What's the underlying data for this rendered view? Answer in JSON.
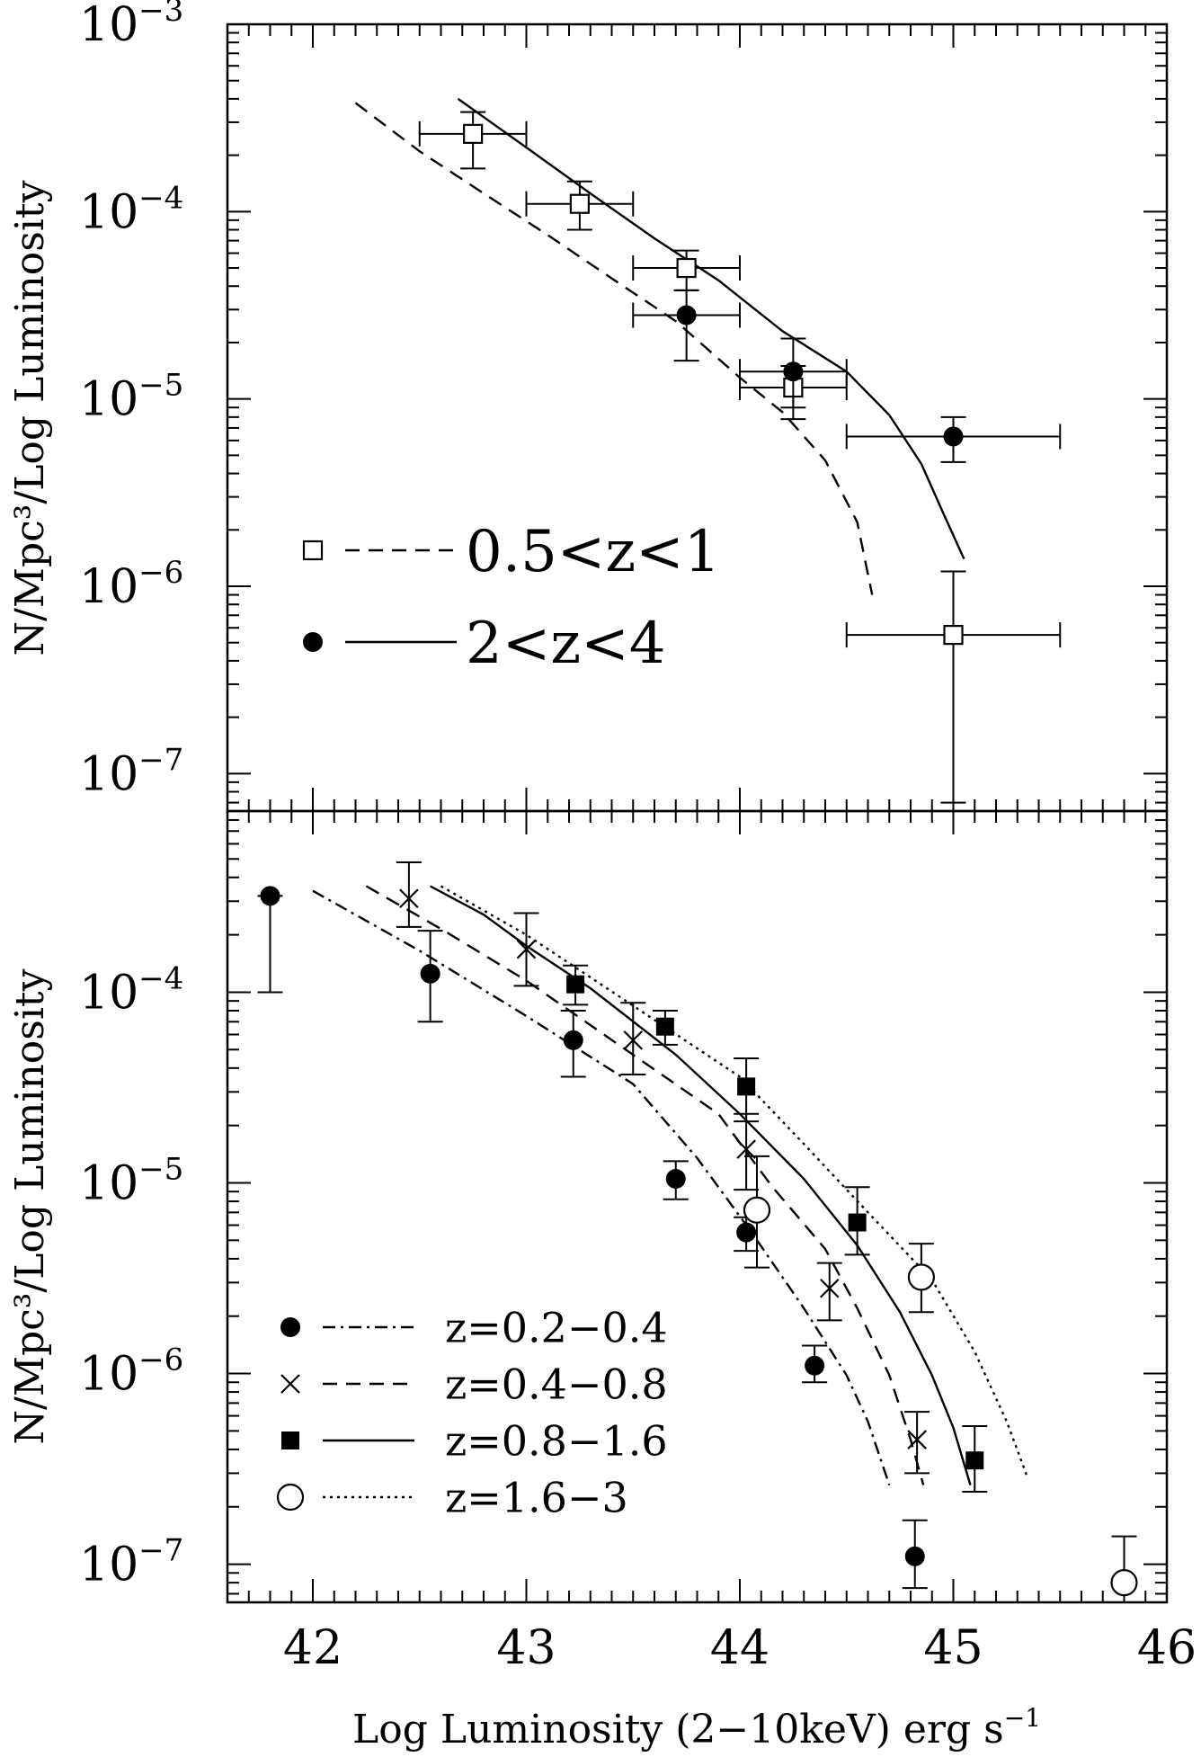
{
  "chart_data": [
    {
      "panel": "top",
      "type": "scatter",
      "ylabel": "N/Mpc³/Log Luminosity",
      "xlim": [
        41.6,
        46.0
      ],
      "ylim": [
        -7.2,
        -3.0
      ],
      "y_scale": "log",
      "y_ticks": [
        {
          "base": "10",
          "exp": "−3",
          "v": -3
        },
        {
          "base": "10",
          "exp": "−4",
          "v": -4
        },
        {
          "base": "10",
          "exp": "−5",
          "v": -5
        },
        {
          "base": "10",
          "exp": "−6",
          "v": -6
        },
        {
          "base": "10",
          "exp": "−7",
          "v": -7
        }
      ],
      "series": [
        {
          "name": "0.5<z<1",
          "marker": "open-square",
          "line": "dashed",
          "points": [
            {
              "x": 42.75,
              "y": 0.00026,
              "xerr": 0.25,
              "yerr": [
                0.00017,
                0.00034
              ]
            },
            {
              "x": 43.25,
              "y": 0.00011,
              "xerr": 0.25,
              "yerr": [
                8e-05,
                0.000145
              ]
            },
            {
              "x": 43.75,
              "y": 5e-05,
              "xerr": 0.25,
              "yerr": [
                3.8e-05,
                6.2e-05
              ]
            },
            {
              "x": 44.25,
              "y": 1.15e-05,
              "xerr": 0.25,
              "yerr": [
                7.8e-06,
                1.5e-05
              ]
            },
            {
              "x": 45.0,
              "y": 5.5e-07,
              "xerr": 0.5,
              "yerr": [
                7e-08,
                1.2e-06
              ]
            }
          ],
          "model": [
            [
              42.2,
              0.00038
            ],
            [
              42.5,
              0.00021
            ],
            [
              42.8,
              0.000125
            ],
            [
              43.1,
              7.5e-05
            ],
            [
              43.4,
              4.4e-05
            ],
            [
              43.7,
              2.6e-05
            ],
            [
              44.0,
              1.3e-05
            ],
            [
              44.2,
              8.5e-06
            ],
            [
              44.4,
              4.7e-06
            ],
            [
              44.55,
              2.2e-06
            ],
            [
              44.62,
              9e-07
            ]
          ]
        },
        {
          "name": "2<z<4",
          "marker": "filled-circle",
          "line": "solid",
          "points": [
            {
              "x": 43.75,
              "y": 2.8e-05,
              "xerr": 0.25,
              "yerr": [
                1.6e-05,
                3.8e-05
              ]
            },
            {
              "x": 44.25,
              "y": 1.4e-05,
              "xerr": 0.25,
              "yerr": [
                9e-06,
                2.1e-05
              ]
            },
            {
              "x": 45.0,
              "y": 6.3e-06,
              "xerr": 0.5,
              "yerr": [
                4.6e-06,
                8e-06
              ]
            }
          ],
          "model": [
            [
              42.68,
              0.0004
            ],
            [
              43.0,
              0.00022
            ],
            [
              43.3,
              0.000125
            ],
            [
              43.6,
              7.2e-05
            ],
            [
              43.9,
              4.3e-05
            ],
            [
              44.2,
              2.3e-05
            ],
            [
              44.5,
              1.4e-05
            ],
            [
              44.7,
              8.2e-06
            ],
            [
              44.85,
              4.5e-06
            ],
            [
              44.95,
              2.5e-06
            ],
            [
              45.05,
              1.4e-06
            ]
          ]
        }
      ],
      "legend": [
        {
          "marker": "open-square",
          "line": "dashed",
          "label": "0.5<z<1"
        },
        {
          "marker": "filled-circle",
          "line": "solid",
          "label": "2<z<4"
        }
      ]
    },
    {
      "panel": "bottom",
      "type": "scatter",
      "xlabel": "Log Luminosity (2−10keV) erg s",
      "xlabel_sup": "−1",
      "ylabel": "N/Mpc³/Log Luminosity",
      "xlim": [
        41.6,
        46.0
      ],
      "ylim": [
        -7.2,
        -3.05
      ],
      "y_scale": "log",
      "x_ticks": [
        "42",
        "43",
        "44",
        "45",
        "46"
      ],
      "y_ticks": [
        {
          "base": "10",
          "exp": "−4",
          "v": -4
        },
        {
          "base": "10",
          "exp": "−5",
          "v": -5
        },
        {
          "base": "10",
          "exp": "−6",
          "v": -6
        },
        {
          "base": "10",
          "exp": "−7",
          "v": -7
        }
      ],
      "series": [
        {
          "name": "z=0.2−0.4",
          "marker": "filled-circle",
          "line": "dashdot",
          "points": [
            {
              "x": 41.8,
              "y": 0.00032,
              "yerr": [
                0.0001,
                0.00032
              ]
            },
            {
              "x": 42.55,
              "y": 0.000125,
              "yerr": [
                7e-05,
                0.00021
              ]
            },
            {
              "x": 43.22,
              "y": 5.6e-05,
              "yerr": [
                3.6e-05,
                8e-05
              ]
            },
            {
              "x": 43.7,
              "y": 1.05e-05,
              "yerr": [
                8.2e-06,
                1.3e-05
              ]
            },
            {
              "x": 44.03,
              "y": 5.5e-06,
              "yerr": [
                4.4e-06,
                6.6e-06
              ]
            },
            {
              "x": 44.35,
              "y": 1.1e-06,
              "yerr": [
                9e-07,
                1.4e-06
              ]
            },
            {
              "x": 44.82,
              "y": 1.1e-07,
              "yerr": [
                7.5e-08,
                1.7e-07
              ]
            }
          ],
          "model": [
            [
              42.0,
              0.00034
            ],
            [
              42.5,
              0.000165
            ],
            [
              43.0,
              7.5e-05
            ],
            [
              43.5,
              3.3e-05
            ],
            [
              43.8,
              1.35e-05
            ],
            [
              44.05,
              5.6e-06
            ],
            [
              44.3,
              2.2e-06
            ],
            [
              44.5,
              9.8e-07
            ],
            [
              44.6,
              5.6e-07
            ],
            [
              44.7,
              2.6e-07
            ]
          ]
        },
        {
          "name": "z=0.4−0.8",
          "marker": "cross",
          "line": "dashed",
          "points": [
            {
              "x": 42.45,
              "y": 0.00031,
              "yerr": [
                0.00022,
                0.00048
              ]
            },
            {
              "x": 43.0,
              "y": 0.000168,
              "yerr": [
                0.000108,
                0.00026
              ]
            },
            {
              "x": 43.5,
              "y": 5.6e-05,
              "yerr": [
                3.7e-05,
                8.8e-05
              ]
            },
            {
              "x": 44.03,
              "y": 1.5e-05,
              "yerr": [
                9.2e-06,
                2.3e-05
              ]
            },
            {
              "x": 44.42,
              "y": 2.8e-06,
              "yerr": [
                1.9e-06,
                3.8e-06
              ]
            },
            {
              "x": 44.83,
              "y": 4.5e-07,
              "yerr": [
                3e-07,
                6.3e-07
              ]
            }
          ],
          "model": [
            [
              42.25,
              0.00036
            ],
            [
              42.6,
              0.000215
            ],
            [
              43.0,
              0.000115
            ],
            [
              43.5,
              4.7e-05
            ],
            [
              43.9,
              2.3e-05
            ],
            [
              44.15,
              9.6e-06
            ],
            [
              44.4,
              4.5e-06
            ],
            [
              44.55,
              2.2e-06
            ],
            [
              44.7,
              9.8e-07
            ],
            [
              44.8,
              4.5e-07
            ],
            [
              44.86,
              2.6e-07
            ]
          ]
        },
        {
          "name": "z=0.8−1.6",
          "marker": "filled-square",
          "line": "solid",
          "points": [
            {
              "x": 43.23,
              "y": 0.00011,
              "yerr": [
                8.6e-05,
                0.000138
              ]
            },
            {
              "x": 43.65,
              "y": 6.6e-05,
              "yerr": [
                5.3e-05,
                8e-05
              ]
            },
            {
              "x": 44.03,
              "y": 3.2e-05,
              "yerr": [
                2.1e-05,
                4.5e-05
              ]
            },
            {
              "x": 44.55,
              "y": 6.2e-06,
              "yerr": [
                4.2e-06,
                9.5e-06
              ]
            },
            {
              "x": 45.1,
              "y": 3.5e-07,
              "yerr": [
                2.4e-07,
                5.3e-07
              ]
            }
          ],
          "model": [
            [
              42.55,
              0.00036
            ],
            [
              42.8,
              0.000255
            ],
            [
              43.0,
              0.000175
            ],
            [
              43.3,
              0.000105
            ],
            [
              43.7,
              4.7e-05
            ],
            [
              44.0,
              2.3e-05
            ],
            [
              44.3,
              1.05e-05
            ],
            [
              44.55,
              4.7e-06
            ],
            [
              44.75,
              2.1e-06
            ],
            [
              44.9,
              9.8e-07
            ],
            [
              45.0,
              5.2e-07
            ],
            [
              45.08,
              2.6e-07
            ]
          ]
        },
        {
          "name": "z=1.6−3",
          "marker": "open-circle",
          "line": "dotted",
          "points": [
            {
              "x": 44.08,
              "y": 7.2e-06,
              "yerr": [
                3.6e-06,
                1.38e-05
              ]
            },
            {
              "x": 44.85,
              "y": 3.2e-06,
              "yerr": [
                2.1e-06,
                4.8e-06
              ]
            },
            {
              "x": 45.8,
              "y": 8e-08,
              "yerr": [
                6e-08,
                1.4e-07
              ]
            }
          ],
          "model": [
            [
              42.6,
              0.00036
            ],
            [
              43.0,
              0.0002
            ],
            [
              43.5,
              8.5e-05
            ],
            [
              44.0,
              3.6e-05
            ],
            [
              44.3,
              1.6e-05
            ],
            [
              44.6,
              7e-06
            ],
            [
              44.9,
              3.1e-06
            ],
            [
              45.1,
              1.3e-06
            ],
            [
              45.25,
              5.6e-07
            ],
            [
              45.35,
              2.8e-07
            ]
          ]
        }
      ],
      "legend": [
        {
          "marker": "filled-circle",
          "line": "dashdot",
          "label": "z=0.2−0.4"
        },
        {
          "marker": "cross",
          "line": "dashed",
          "label": "z=0.4−0.8"
        },
        {
          "marker": "filled-square",
          "line": "solid",
          "label": "z=0.8−1.6"
        },
        {
          "marker": "open-circle",
          "line": "dotted",
          "label": "z=1.6−3"
        }
      ]
    }
  ]
}
